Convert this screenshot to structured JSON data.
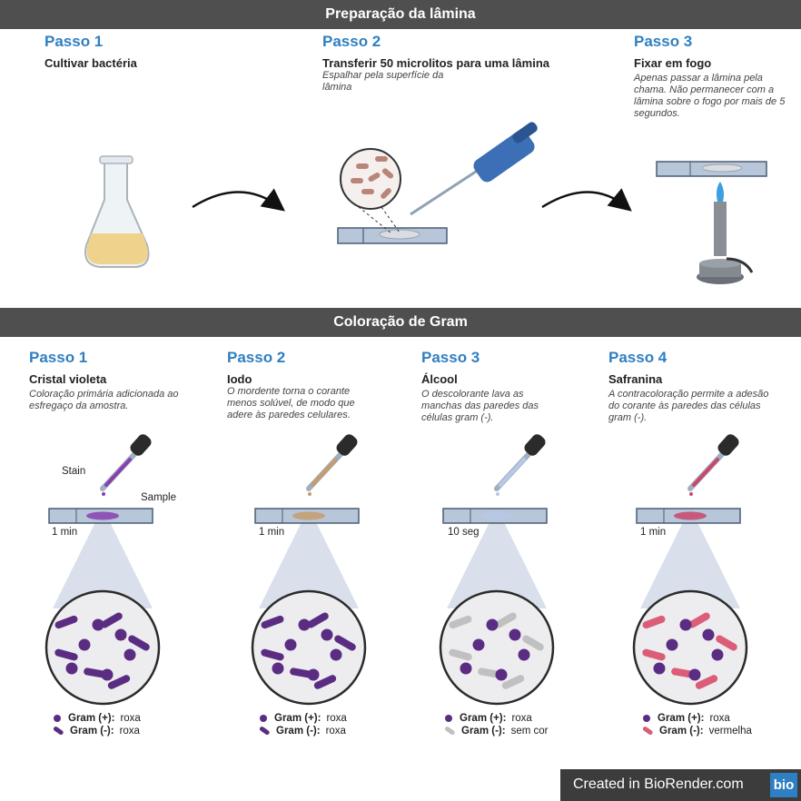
{
  "prep": {
    "header": "Preparação da lâmina",
    "steps": [
      {
        "title": "Passo 1",
        "name": "Cultivar bactéria",
        "desc": ""
      },
      {
        "title": "Passo 2",
        "name": "Transferir 50 microlitos para uma lâmina",
        "desc": "Espalhar pela superfície da lâmina"
      },
      {
        "title": "Passo 3",
        "name": "Fixar em fogo",
        "desc": "Apenas passar a lâmina pela chama. Não permanecer com a lâmina sobre o fogo por mais de 5 segundos."
      }
    ]
  },
  "gram": {
    "header": "Coloração de Gram",
    "steps": [
      {
        "title": "Passo 1",
        "name": "Cristal violeta",
        "desc": "Coloração primária adicionada ao esfregaço da amostra.",
        "time": "1 min",
        "stain_color": "#8a3fb0",
        "legend": {
          "pos_label": "Gram (+):",
          "pos_value": "roxa",
          "neg_label": "Gram (-):",
          "neg_value": "roxa"
        }
      },
      {
        "title": "Passo 2",
        "name": "Iodo",
        "desc": "O mordente torna o corante menos solúvel, de modo que adere às paredes celulares.",
        "time": "1 min",
        "stain_color": "#c79b6c",
        "legend": {
          "pos_label": "Gram (+):",
          "pos_value": "roxa",
          "neg_label": "Gram (-):",
          "neg_value": "roxa"
        }
      },
      {
        "title": "Passo 3",
        "name": "Álcool",
        "desc": "O descolorante lava as manchas das paredes das células gram (-).",
        "time": "10 seg",
        "stain_color": "#b8c8e6",
        "legend": {
          "pos_label": "Gram (+):",
          "pos_value": "roxa",
          "neg_label": "Gram (-):",
          "neg_value": "sem cor"
        }
      },
      {
        "title": "Passo 4",
        "name": "Safranina",
        "desc": "A contracoloração permite a adesão do corante às paredes das células gram (-).",
        "time": "1 min",
        "stain_color": "#c9476b",
        "legend": {
          "pos_label": "Gram (+):",
          "pos_value": "roxa",
          "neg_label": "Gram (-):",
          "neg_value": "vermelha"
        }
      }
    ],
    "stain_label": "Stain",
    "sample_label": "Sample"
  },
  "colors": {
    "purple": "#5b2d82",
    "gray": "#c0c0c0",
    "red": "#db5d78",
    "accent": "#2f7fc1"
  },
  "brand": {
    "text": "Created in BioRender.com",
    "logo": "bio"
  }
}
